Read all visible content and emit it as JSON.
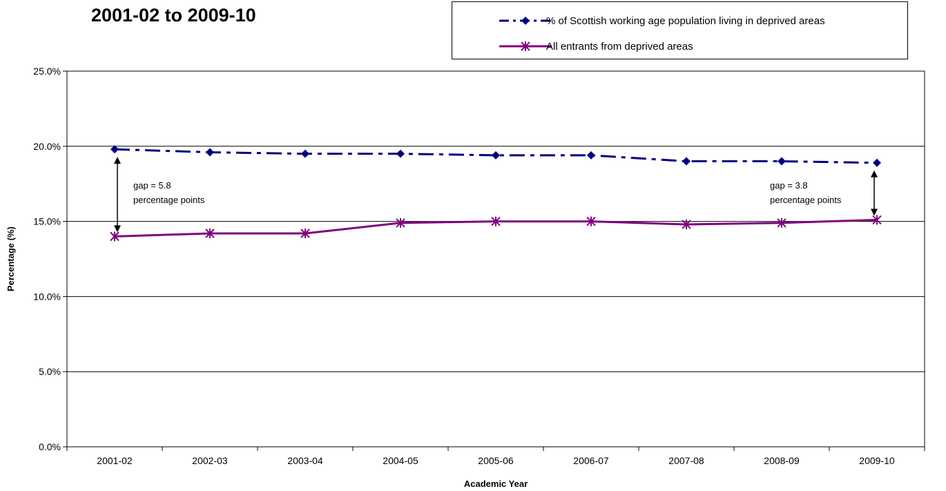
{
  "title": {
    "line1": "",
    "line2": "2001-02 to 2009-10"
  },
  "chart_data": {
    "type": "line",
    "categories": [
      "2001-02",
      "2002-03",
      "2003-04",
      "2004-05",
      "2005-06",
      "2006-07",
      "2007-08",
      "2008-09",
      "2009-10"
    ],
    "series": [
      {
        "name": "% of Scottish working age population living in deprived areas",
        "values": [
          19.8,
          19.6,
          19.5,
          19.5,
          19.4,
          19.4,
          19.0,
          19.0,
          18.9
        ],
        "color": "#000080",
        "marker": "diamond",
        "line_style": "dash-dot"
      },
      {
        "name": "All entrants from deprived areas",
        "values": [
          14.0,
          14.2,
          14.2,
          14.9,
          15.0,
          15.0,
          14.8,
          14.9,
          15.1
        ],
        "color": "#800080",
        "marker": "asterisk",
        "line_style": "solid"
      }
    ],
    "xlabel": "Academic Year",
    "ylabel": "Percentage (%)",
    "ylim": [
      0,
      25
    ],
    "yticks": [
      "0.0%",
      "5.0%",
      "10.0%",
      "15.0%",
      "20.0%",
      "25.0%"
    ],
    "grid": true,
    "legend_position": "top-right",
    "annotations": [
      {
        "line1": "gap = 5.8",
        "line2": "percentage points",
        "category": "2001-02",
        "side": "right"
      },
      {
        "line1": "gap = 3.8",
        "line2": "percentage points",
        "category": "2009-10",
        "side": "left"
      }
    ]
  }
}
